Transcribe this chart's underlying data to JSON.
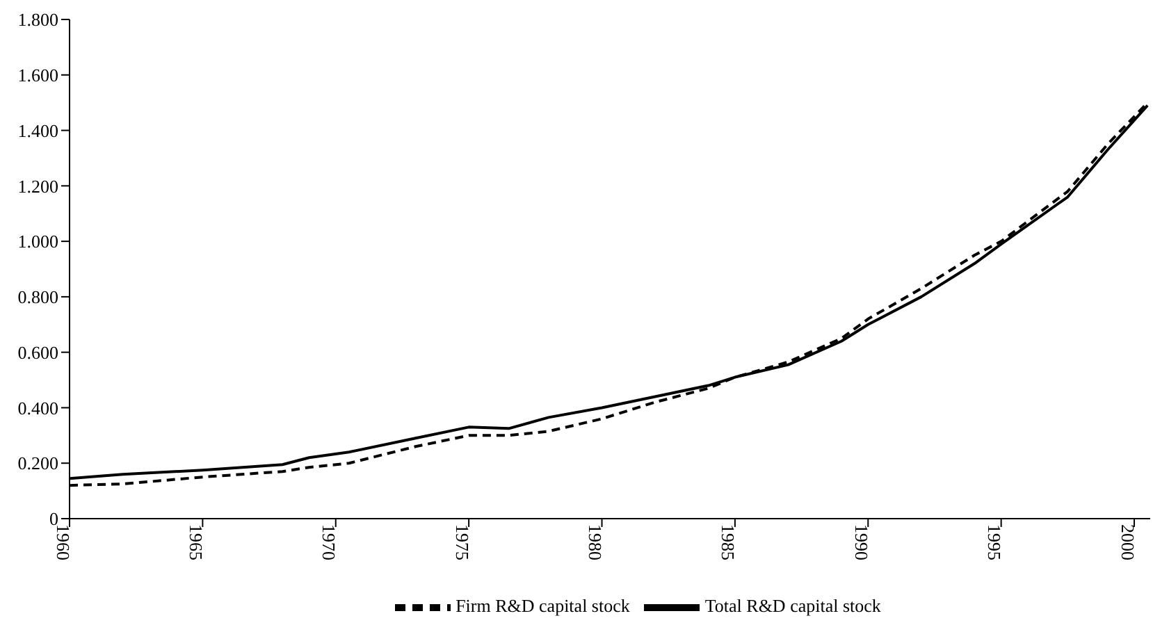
{
  "chart_data": {
    "type": "line",
    "x": [
      1960,
      1962,
      1965,
      1968,
      1969,
      1970.5,
      1973,
      1975,
      1976.5,
      1978,
      1980,
      1982,
      1984,
      1985,
      1987,
      1989,
      1990,
      1992,
      1994,
      1995,
      1997.5,
      1999,
      2000.5
    ],
    "series": [
      {
        "name": "Firm R&D capital stock",
        "color": "#000000",
        "line_style": "dashed",
        "values": [
          0.12,
          0.125,
          0.15,
          0.17,
          0.185,
          0.2,
          0.26,
          0.3,
          0.3,
          0.315,
          0.36,
          0.42,
          0.47,
          0.51,
          0.565,
          0.65,
          0.72,
          0.83,
          0.95,
          1.0,
          1.18,
          1.35,
          1.5
        ]
      },
      {
        "name": "Total R&D capital stock",
        "color": "#000000",
        "line_style": "solid",
        "values": [
          0.145,
          0.16,
          0.175,
          0.195,
          0.22,
          0.24,
          0.29,
          0.33,
          0.325,
          0.365,
          0.4,
          0.44,
          0.48,
          0.51,
          0.555,
          0.64,
          0.7,
          0.8,
          0.92,
          0.99,
          1.16,
          1.33,
          1.49
        ]
      }
    ],
    "xlim": [
      1960,
      2000.6
    ],
    "xticks": [
      1960,
      1965,
      1970,
      1975,
      1980,
      1985,
      1990,
      1995,
      2000
    ],
    "ylim": [
      0,
      1.8
    ],
    "yticks": [
      0,
      {
        "value": 0.2,
        "label": "0.200"
      },
      {
        "value": 0.4,
        "label": "0.400"
      },
      {
        "value": 0.6,
        "label": "0.600"
      },
      {
        "value": 0.8,
        "label": "0.800"
      },
      {
        "value": 1.0,
        "label": "1.000"
      },
      {
        "value": 1.2,
        "label": "1.200"
      },
      {
        "value": 1.4,
        "label": "1.400"
      },
      {
        "value": 1.6,
        "label": "1.600"
      },
      {
        "value": 1.8,
        "label": "1.800"
      }
    ],
    "grid": false,
    "legend": "bottom",
    "marker": "none"
  }
}
